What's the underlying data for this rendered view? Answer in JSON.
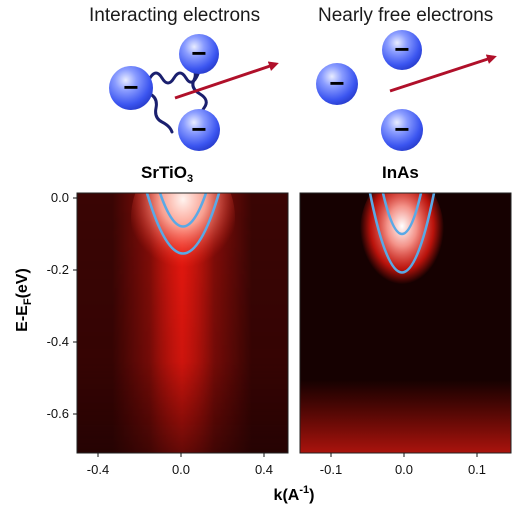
{
  "titles": {
    "interacting": "Interacting electrons",
    "free": "Nearly free electrons"
  },
  "materials": {
    "left_main": "SrTiO",
    "left_sub": "3",
    "right": "InAs"
  },
  "axes": {
    "y_main": "E-E",
    "y_sub": "F",
    "y_unit": "(eV)",
    "x_main": "k(A",
    "x_sup": "-1",
    "x_close": ")"
  },
  "y_ticks": [
    "0.0",
    "-0.2",
    "-0.4",
    "-0.6"
  ],
  "left_x_ticks": [
    "-0.4",
    "0.0",
    "0.4"
  ],
  "right_x_ticks": [
    "-0.1",
    "0.0",
    "0.1"
  ],
  "electron_symbol": "−",
  "colors": {
    "sphere": "#4f6cff",
    "arrow": "#b0102a",
    "wiggle": "#1a1f6e",
    "band": "#5aa9e6"
  }
}
